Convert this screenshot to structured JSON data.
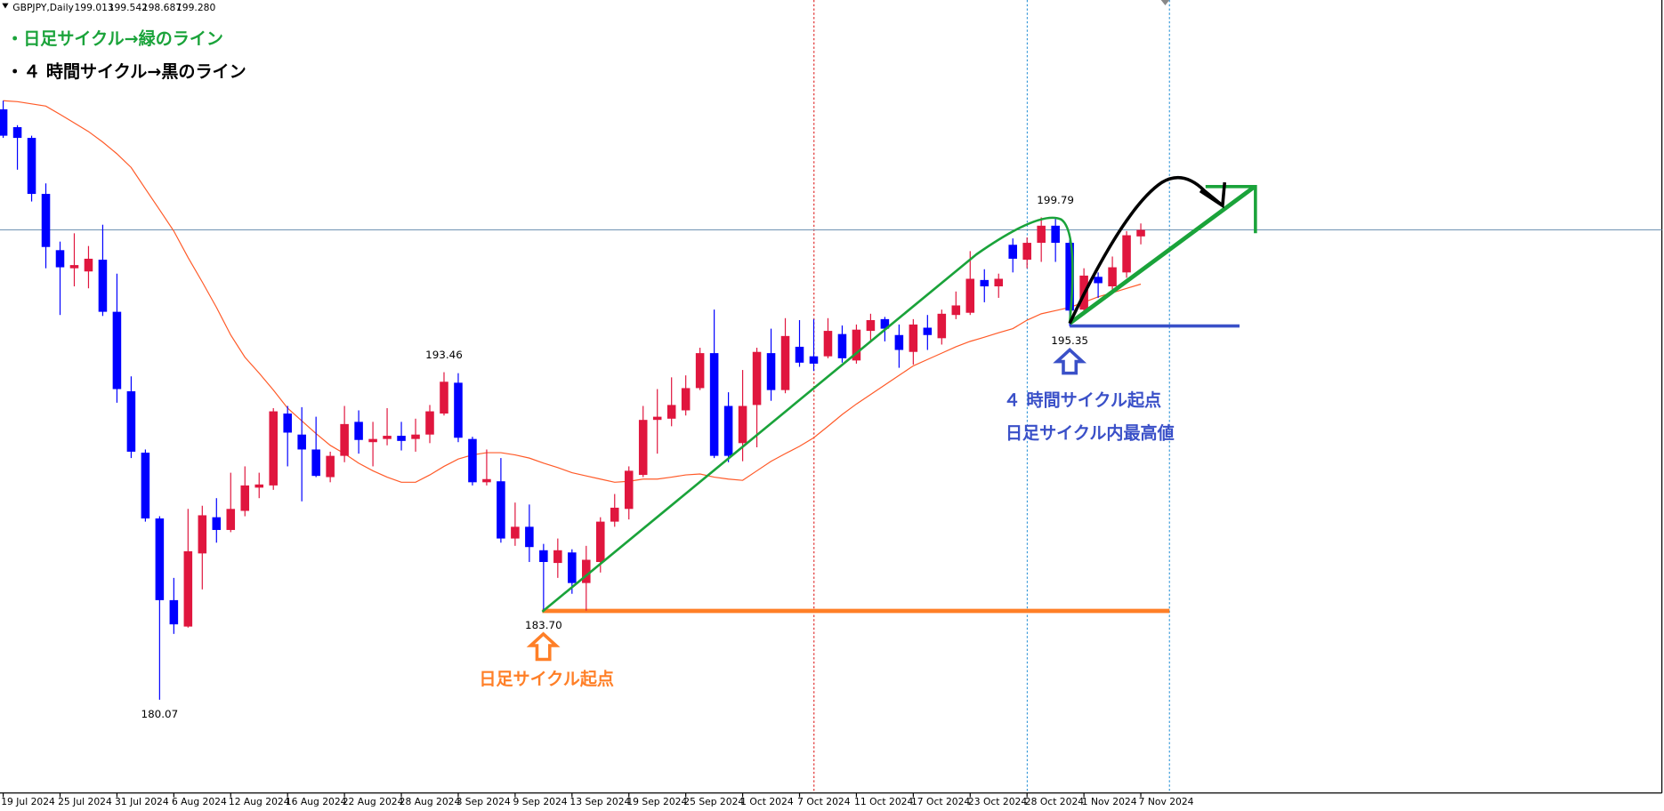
{
  "chart_data": {
    "type": "candlestick",
    "header": {
      "symbol": "GBPJPY,Daily",
      "ohlc": [
        199.013,
        199.542,
        198.687,
        {
          "value": 199.28,
          "label": "199.280"
        }
      ]
    },
    "legend": [
      "・日足サイクル→緑のライン",
      "・４ 時間サイクル→黒のライン"
    ],
    "annotations": [
      "４ 時間サイクル起点",
      "日足サイクル内最高値",
      "日足サイクル起点"
    ],
    "price_labels": [
      {
        "value": 193.46,
        "label": "193.46"
      },
      {
        "value": 199.79,
        "label": "199.79"
      },
      {
        "value": 195.35,
        "label": "195.35"
      },
      {
        "value": 183.7,
        "label": "183.70"
      },
      {
        "value": 180.07,
        "label": "180.07"
      }
    ],
    "up_color": "#e0163e",
    "down_color": "#0000ff",
    "categories": [
      "19 Jul 2024",
      null,
      null,
      null,
      "25 Jul 2024",
      null,
      null,
      null,
      "31 Jul 2024",
      null,
      null,
      null,
      "6 Aug 2024",
      null,
      null,
      null,
      "12 Aug 2024",
      null,
      null,
      null,
      "16 Aug 2024",
      null,
      null,
      null,
      "22 Aug 2024",
      null,
      null,
      null,
      "28 Aug 2024",
      null,
      null,
      null,
      "3 Sep 2024",
      null,
      null,
      null,
      "9 Sep 2024",
      null,
      null,
      null,
      "13 Sep 2024",
      null,
      null,
      null,
      "19 Sep 2024",
      null,
      null,
      null,
      "25 Sep 2024",
      null,
      null,
      null,
      "1 Oct 2024",
      null,
      null,
      null,
      "7 Oct 2024",
      null,
      null,
      null,
      "11 Oct 2024",
      null,
      null,
      null,
      "17 Oct 2024",
      null,
      null,
      null,
      "23 Oct 2024",
      null,
      null,
      null,
      "28 Oct 2024",
      null,
      null,
      null,
      "1 Nov 2024",
      null,
      null,
      null,
      "7 Nov 2024"
    ],
    "open": [
      204.21,
      203.48,
      203.04,
      200.75,
      198.45,
      197.71,
      197.58,
      198.06,
      195.93,
      192.68,
      190.17,
      187.48,
      184.14,
      183.06,
      186.05,
      187.53,
      187.01,
      187.79,
      188.74,
      188.83,
      191.77,
      190.91,
      190.3,
      189.17,
      190.04,
      191.43,
      190.6,
      190.73,
      190.86,
      190.73,
      190.91,
      191.77,
      193.03,
      190.73,
      188.96,
      189.0,
      186.66,
      187.14,
      186.18,
      185.66,
      186.09,
      184.84,
      185.7,
      187.35,
      187.87,
      189.26,
      191.51,
      191.56,
      191.9,
      192.81,
      194.24,
      192.08,
      190.56,
      192.12,
      194.24,
      192.73,
      194.5,
      194.11,
      194.11,
      195.02,
      193.94,
      195.15,
      195.63,
      194.98,
      194.29,
      195.28,
      194.85,
      195.8,
      195.89,
      197.23,
      196.97,
      198.67,
      198.06,
      198.75,
      199.45,
      198.75,
      196.02,
      197.36,
      196.97,
      197.54,
      199.013
    ],
    "high": [
      204.56,
      203.56,
      203.13,
      201.18,
      198.8,
      199.14,
      198.62,
      199.49,
      197.49,
      193.29,
      190.3,
      187.57,
      185.05,
      187.87,
      188.0,
      188.31,
      189.35,
      189.61,
      189.35,
      191.99,
      192.08,
      192.03,
      191.64,
      190.21,
      192.08,
      191.9,
      191.43,
      191.99,
      191.43,
      191.56,
      192.12,
      193.46,
      193.42,
      190.82,
      190.3,
      189.95,
      188.13,
      188.05,
      186.44,
      186.66,
      186.22,
      186.36,
      187.53,
      188.48,
      189.61,
      192.08,
      192.77,
      193.25,
      193.33,
      194.46,
      196.02,
      192.64,
      193.55,
      194.46,
      195.24,
      195.67,
      195.59,
      195.63,
      195.67,
      195.37,
      195.41,
      195.85,
      195.72,
      195.41,
      195.63,
      195.8,
      196.02,
      196.76,
      198.41,
      197.67,
      197.49,
      198.93,
      198.97,
      199.79,
      199.76,
      198.88,
      197.71,
      197.54,
      198.19,
      199.23,
      199.542
    ],
    "low": [
      203.04,
      201.74,
      200.44,
      197.71,
      195.8,
      196.97,
      196.89,
      195.76,
      192.21,
      189.95,
      187.35,
      180.07,
      182.76,
      183.02,
      184.58,
      186.49,
      186.92,
      187.57,
      188.31,
      188.65,
      189.61,
      188.18,
      189.17,
      188.96,
      189.78,
      190.13,
      189.61,
      190.47,
      190.26,
      190.21,
      190.56,
      191.69,
      190.6,
      188.83,
      188.83,
      186.49,
      186.36,
      185.7,
      183.7,
      185.05,
      184.4,
      183.71,
      185.27,
      187.14,
      187.44,
      189.17,
      190.13,
      191.25,
      191.69,
      192.73,
      189.95,
      189.78,
      189.82,
      190.39,
      192.29,
      192.6,
      193.68,
      193.51,
      194.03,
      193.85,
      193.81,
      194.76,
      194.72,
      193.64,
      193.77,
      194.37,
      194.59,
      195.63,
      195.8,
      196.32,
      196.5,
      197.54,
      197.71,
      197.97,
      197.97,
      195.35,
      195.89,
      196.5,
      196.8,
      197.32,
      198.687
    ],
    "close": [
      203.13,
      203.04,
      200.75,
      198.58,
      197.75,
      197.84,
      198.1,
      195.93,
      192.77,
      190.21,
      187.48,
      184.14,
      183.15,
      186.14,
      187.61,
      187.01,
      187.87,
      188.83,
      188.87,
      191.86,
      190.99,
      190.3,
      189.22,
      190.04,
      191.34,
      190.69,
      190.73,
      190.86,
      190.65,
      190.91,
      191.86,
      193.07,
      190.78,
      188.96,
      189.09,
      186.66,
      187.14,
      186.31,
      185.7,
      186.18,
      184.84,
      185.79,
      187.35,
      187.92,
      189.43,
      191.51,
      191.64,
      192.12,
      192.81,
      194.24,
      190.04,
      190.04,
      192.08,
      194.29,
      192.73,
      194.94,
      193.85,
      193.81,
      195.15,
      194.03,
      195.2,
      195.59,
      195.24,
      194.37,
      195.41,
      194.98,
      195.85,
      196.19,
      197.28,
      196.97,
      197.28,
      198.1,
      198.75,
      199.45,
      198.75,
      195.98,
      197.41,
      197.1,
      197.75,
      199.06,
      199.28
    ],
    "ma": {
      "color": "#ff5a28",
      "values": [
        204.56,
        204.52,
        204.43,
        204.34,
        204.0,
        203.65,
        203.3,
        202.87,
        202.39,
        201.83,
        200.96,
        200.1,
        199.23,
        198.15,
        197.15,
        196.11,
        194.98,
        194.07,
        193.42,
        192.73,
        191.99,
        191.47,
        190.95,
        190.47,
        190.13,
        189.74,
        189.43,
        189.17,
        188.96,
        188.96,
        189.26,
        189.61,
        189.91,
        190.08,
        190.17,
        190.17,
        190.08,
        189.95,
        189.74,
        189.56,
        189.35,
        189.22,
        189.09,
        188.96,
        189.0,
        189.09,
        189.09,
        189.17,
        189.26,
        189.3,
        189.17,
        189.09,
        189.04,
        189.43,
        189.82,
        190.13,
        190.43,
        190.78,
        191.25,
        191.73,
        192.16,
        192.55,
        192.94,
        193.33,
        193.72,
        193.98,
        194.24,
        194.5,
        194.72,
        194.89,
        195.07,
        195.24,
        195.59,
        195.85,
        195.98,
        196.11,
        196.32,
        196.54,
        196.71,
        196.89,
        197.06
      ]
    }
  }
}
